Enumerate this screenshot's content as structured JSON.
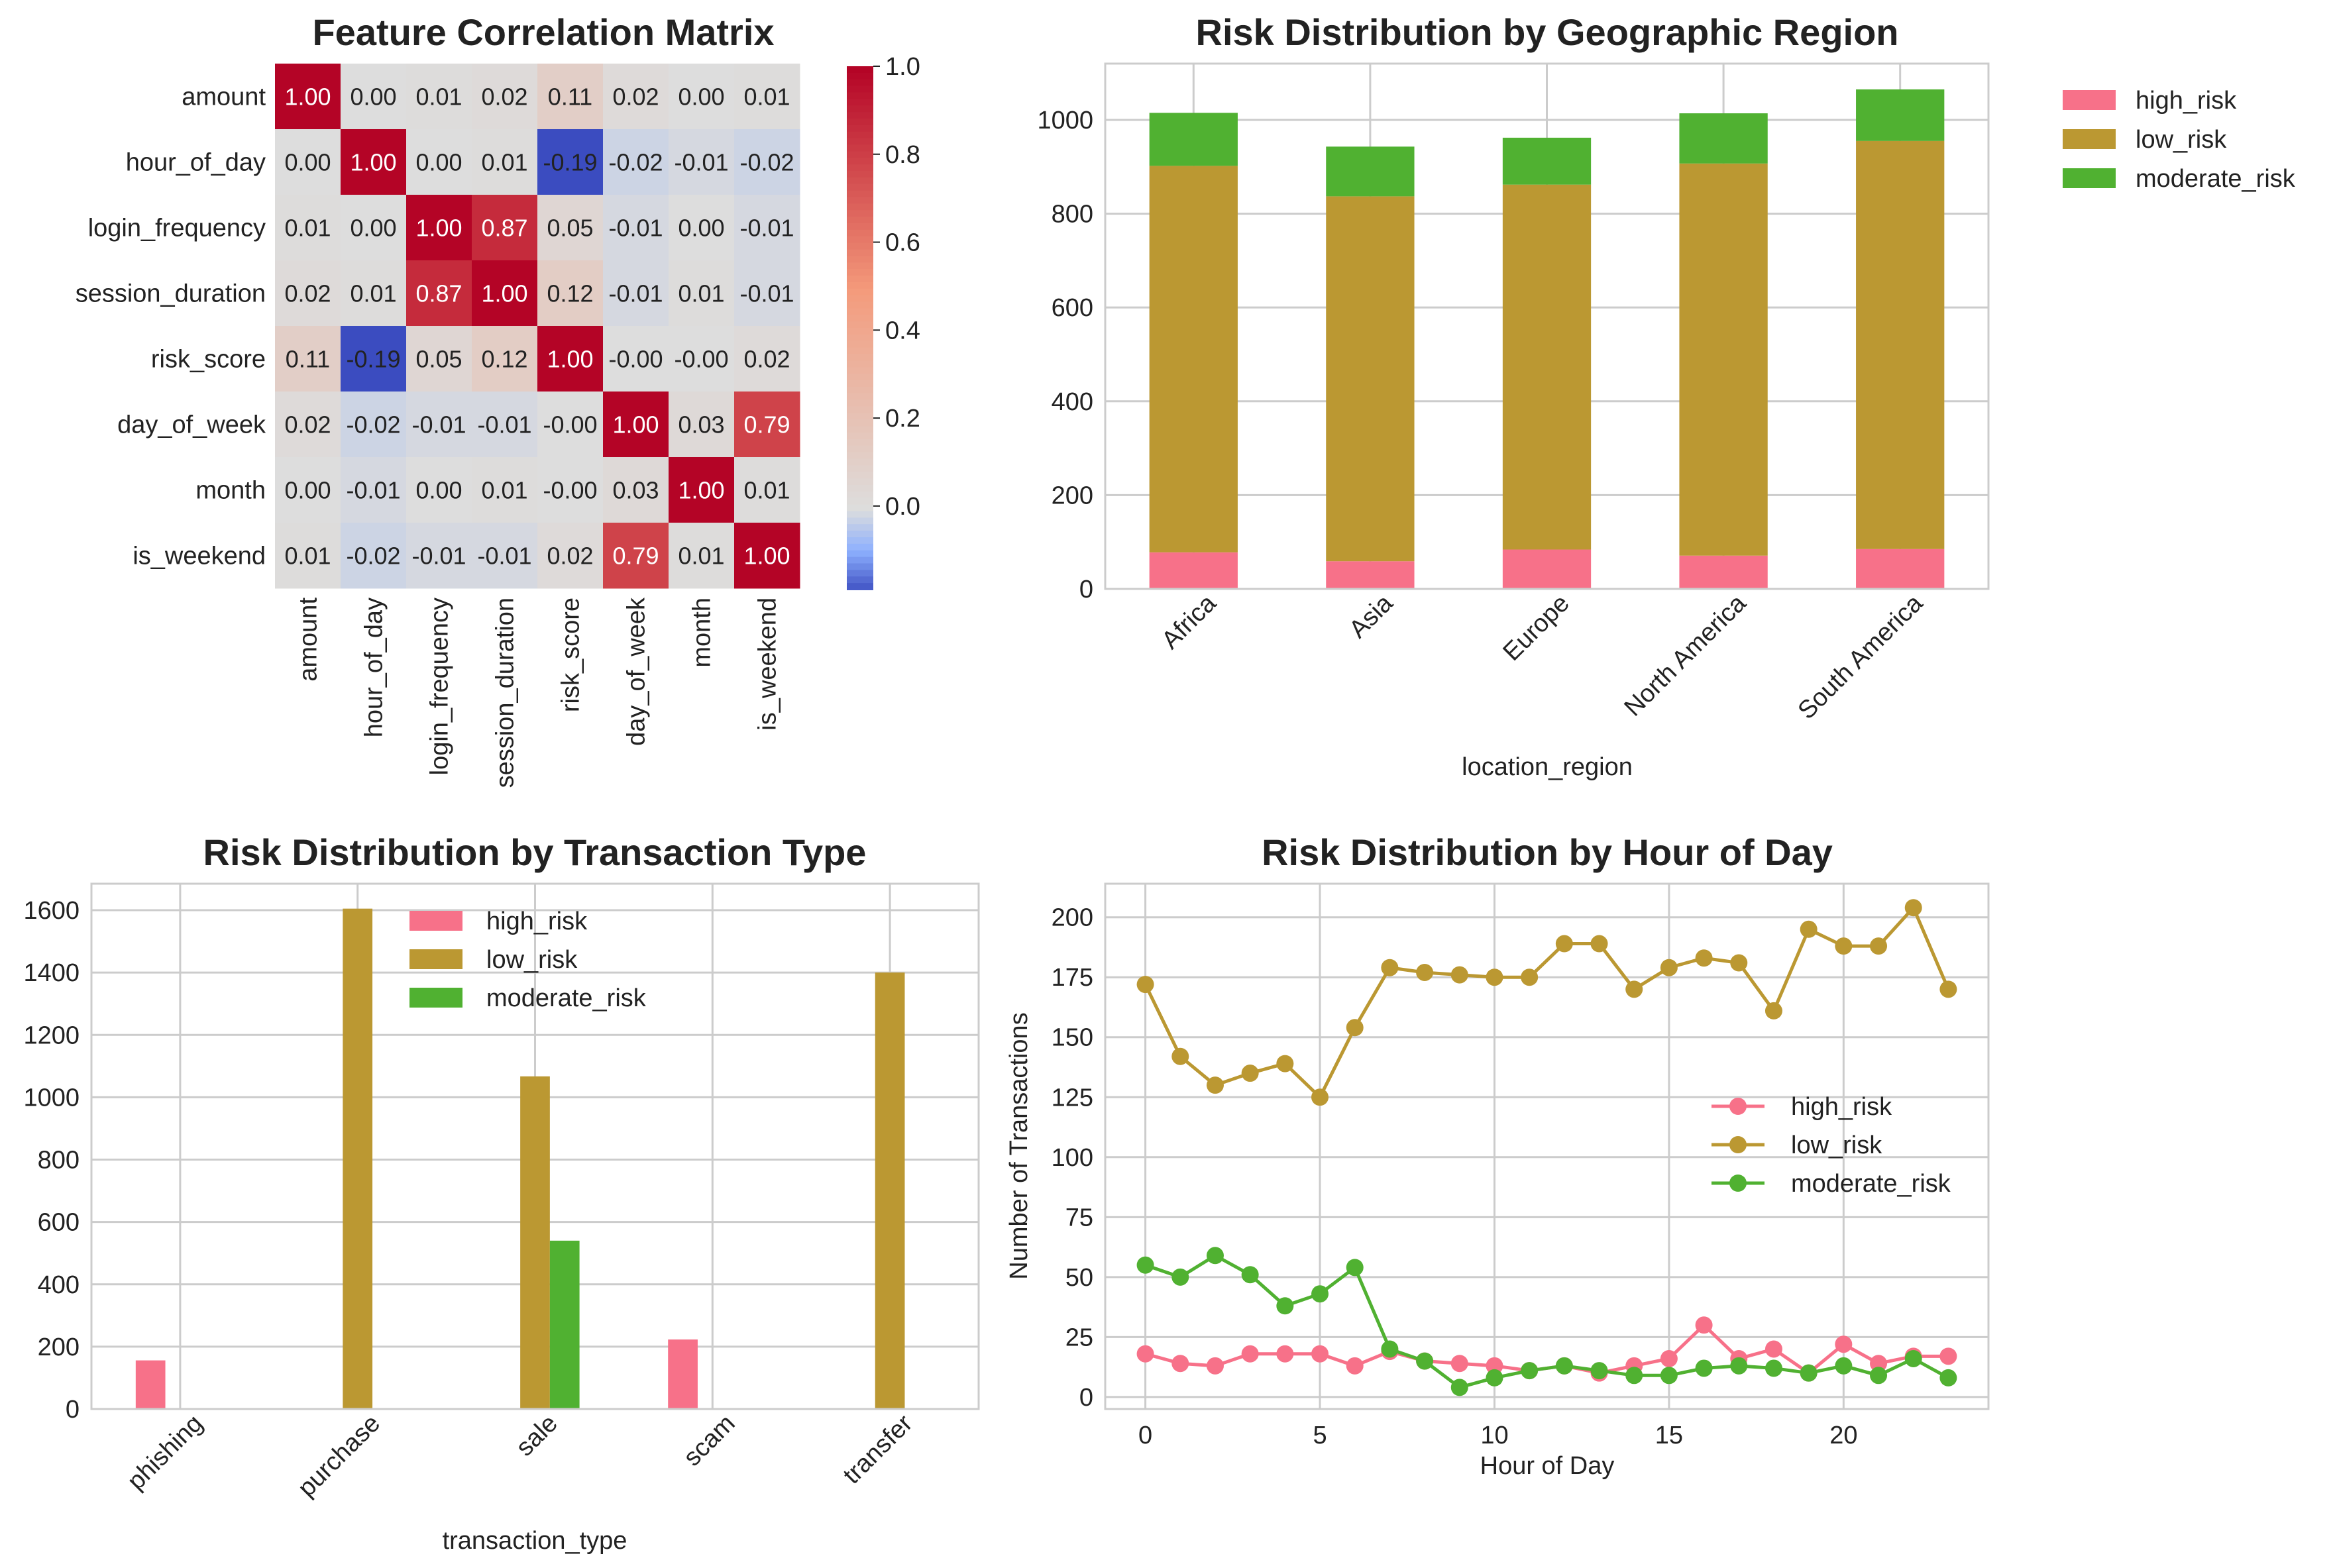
{
  "chart_data": [
    {
      "type": "heatmap",
      "title": "Feature Correlation Matrix",
      "row_labels": [
        "amount",
        "hour_of_day",
        "login_frequency",
        "session_duration",
        "risk_score",
        "day_of_week",
        "month",
        "is_weekend"
      ],
      "col_labels": [
        "amount",
        "hour_of_day",
        "login_frequency",
        "session_duration",
        "risk_score",
        "day_of_week",
        "month",
        "is_weekend"
      ],
      "values": [
        [
          1.0,
          0.0,
          0.01,
          0.02,
          0.11,
          0.02,
          0.0,
          0.01
        ],
        [
          0.0,
          1.0,
          0.0,
          0.01,
          -0.19,
          -0.02,
          -0.01,
          -0.02
        ],
        [
          0.01,
          0.0,
          1.0,
          0.87,
          0.05,
          -0.01,
          0.0,
          -0.01
        ],
        [
          0.02,
          0.01,
          0.87,
          1.0,
          0.12,
          -0.01,
          0.01,
          -0.01
        ],
        [
          0.11,
          -0.19,
          0.05,
          0.12,
          1.0,
          -0.0,
          -0.0,
          0.02
        ],
        [
          0.02,
          -0.02,
          -0.01,
          -0.01,
          -0.0,
          1.0,
          0.03,
          0.79
        ],
        [
          0.0,
          -0.01,
          0.0,
          0.01,
          -0.0,
          0.03,
          1.0,
          0.01
        ],
        [
          0.01,
          -0.02,
          -0.01,
          -0.01,
          0.02,
          0.79,
          0.01,
          1.0
        ]
      ],
      "cell_labels": [
        [
          "1.00",
          "0.00",
          "0.01",
          "0.02",
          "0.11",
          "0.02",
          "0.00",
          "0.01"
        ],
        [
          "0.00",
          "1.00",
          "0.00",
          "0.01",
          "-0.19",
          "-0.02",
          "-0.01",
          "-0.02"
        ],
        [
          "0.01",
          "0.00",
          "1.00",
          "0.87",
          "0.05",
          "-0.01",
          "0.00",
          "-0.01"
        ],
        [
          "0.02",
          "0.01",
          "0.87",
          "1.00",
          "0.12",
          "-0.01",
          "0.01",
          "-0.01"
        ],
        [
          "0.11",
          "-0.19",
          "0.05",
          "0.12",
          "1.00",
          "-0.00",
          "-0.00",
          "0.02"
        ],
        [
          "0.02",
          "-0.02",
          "-0.01",
          "-0.01",
          "-0.00",
          "1.00",
          "0.03",
          "0.79"
        ],
        [
          "0.00",
          "-0.01",
          "0.00",
          "0.01",
          "-0.00",
          "0.03",
          "1.00",
          "0.01"
        ],
        [
          "0.01",
          "-0.02",
          "-0.01",
          "-0.01",
          "0.02",
          "0.79",
          "0.01",
          "1.00"
        ]
      ],
      "colormap": "coolwarm",
      "colorbar": {
        "range": [
          -0.19,
          1.0
        ],
        "ticks": [
          0.0,
          0.2,
          0.4,
          0.6,
          0.8,
          1.0
        ],
        "tick_labels": [
          "0.0",
          "0.2",
          "0.4",
          "0.6",
          "0.8",
          "1.0"
        ]
      }
    },
    {
      "type": "bar",
      "stacked": true,
      "title": "Risk Distribution by Geographic Region",
      "xlabel": "location_region",
      "ylabel": "",
      "categories": [
        "Africa",
        "Asia",
        "Europe",
        "North America",
        "South America"
      ],
      "series": [
        {
          "name": "high_risk",
          "values": [
            78,
            59,
            84,
            71,
            85
          ],
          "color": "#f77189"
        },
        {
          "name": "low_risk",
          "values": [
            824,
            778,
            778,
            836,
            870
          ],
          "color": "#bb9832"
        },
        {
          "name": "moderate_risk",
          "values": [
            113,
            106,
            100,
            107,
            110
          ],
          "color": "#50b131"
        }
      ],
      "ylim": [
        0,
        1120
      ],
      "yticks": [
        0,
        200,
        400,
        600,
        800,
        1000
      ],
      "legend": "outside-right",
      "grid": true
    },
    {
      "type": "bar",
      "stacked": false,
      "title": "Risk Distribution by Transaction Type",
      "xlabel": "transaction_type",
      "ylabel": "",
      "categories": [
        "phishing",
        "purchase",
        "sale",
        "scam",
        "transfer"
      ],
      "series": [
        {
          "name": "high_risk",
          "values": [
            156,
            0,
            0,
            223,
            0
          ],
          "color": "#f77189"
        },
        {
          "name": "low_risk",
          "values": [
            0,
            1605,
            1067,
            0,
            1400
          ],
          "color": "#bb9832"
        },
        {
          "name": "moderate_risk",
          "values": [
            0,
            0,
            540,
            0,
            0
          ],
          "color": "#50b131"
        }
      ],
      "ylim": [
        0,
        1685
      ],
      "yticks": [
        0,
        200,
        400,
        600,
        800,
        1000,
        1200,
        1400,
        1600
      ],
      "legend": "top-center",
      "grid": true
    },
    {
      "type": "line",
      "title": "Risk Distribution by Hour of Day",
      "xlabel": "Hour of Day",
      "ylabel": "Number of Transactions",
      "x": [
        0,
        1,
        2,
        3,
        4,
        5,
        6,
        7,
        8,
        9,
        10,
        11,
        12,
        13,
        14,
        15,
        16,
        17,
        18,
        19,
        20,
        21,
        22,
        23
      ],
      "series": [
        {
          "name": "high_risk",
          "color": "#f77189",
          "values": [
            18,
            14,
            13,
            18,
            18,
            18,
            13,
            19,
            15,
            14,
            13,
            11,
            13,
            10,
            13,
            16,
            30,
            16,
            20,
            10,
            22,
            14,
            17,
            17
          ]
        },
        {
          "name": "low_risk",
          "color": "#bb9832",
          "values": [
            172,
            142,
            130,
            135,
            139,
            125,
            154,
            179,
            177,
            176,
            175,
            175,
            189,
            189,
            170,
            179,
            183,
            181,
            161,
            195,
            188,
            188,
            204,
            170
          ]
        },
        {
          "name": "moderate_risk",
          "color": "#50b131",
          "values": [
            55,
            50,
            59,
            51,
            38,
            43,
            54,
            20,
            15,
            4,
            8,
            11,
            13,
            11,
            9,
            9,
            12,
            13,
            12,
            10,
            13,
            9,
            16,
            8
          ]
        }
      ],
      "xlim": [
        -1.15,
        24.15
      ],
      "ylim": [
        -5,
        214
      ],
      "xticks": [
        0,
        5,
        10,
        15,
        20
      ],
      "yticks": [
        0,
        25,
        50,
        75,
        100,
        125,
        150,
        175,
        200
      ],
      "legend": "center-right",
      "grid": true
    }
  ]
}
